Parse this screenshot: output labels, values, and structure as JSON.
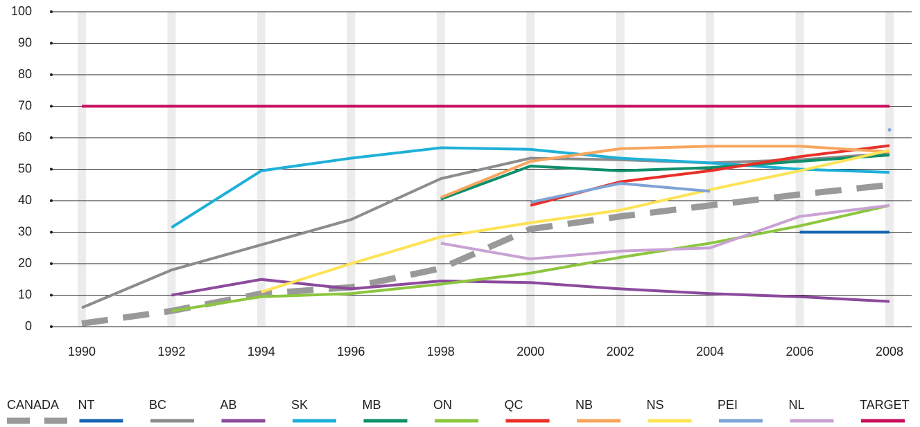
{
  "chart_data": {
    "type": "line",
    "categories": [
      "1990",
      "1992",
      "1994",
      "1996",
      "1998",
      "2000",
      "2002",
      "2004",
      "2006",
      "2008"
    ],
    "ylim": [
      0,
      100
    ],
    "yticks": [
      0,
      10,
      20,
      30,
      40,
      50,
      60,
      70,
      80,
      90,
      100
    ],
    "grid": true,
    "legend": "bottom",
    "series": [
      {
        "name": "CANADA",
        "color": "#999999",
        "dashed": true,
        "values": [
          1,
          5,
          10.5,
          12.5,
          18.5,
          31,
          35,
          38.5,
          42,
          45
        ]
      },
      {
        "name": "NT",
        "color": "#1565b0",
        "values": [
          null,
          null,
          null,
          null,
          null,
          null,
          null,
          null,
          30,
          30
        ]
      },
      {
        "name": "BC",
        "color": "#8c8c8c",
        "values": [
          6,
          18,
          26,
          34,
          47,
          53.5,
          53,
          52,
          53,
          55
        ]
      },
      {
        "name": "AB",
        "color": "#8b4a9c",
        "values": [
          null,
          10,
          15,
          12,
          14.5,
          14,
          12,
          10.5,
          9.5,
          8
        ]
      },
      {
        "name": "SK",
        "color": "#1eb0d8",
        "values": [
          null,
          31.5,
          49.5,
          53.5,
          56.8,
          56.3,
          53.5,
          52,
          50,
          49
        ]
      },
      {
        "name": "MB",
        "color": "#0f8f6a",
        "values": [
          null,
          null,
          null,
          null,
          40.5,
          51,
          49.5,
          50.5,
          52.5,
          54.5
        ]
      },
      {
        "name": "ON",
        "color": "#8cc63f",
        "values": [
          null,
          5,
          9.5,
          10.5,
          13.5,
          17,
          22,
          26.5,
          32,
          38.5
        ]
      },
      {
        "name": "QC",
        "color": "#e8302a",
        "values": [
          null,
          null,
          null,
          null,
          null,
          38.5,
          46,
          49.5,
          54,
          57.5
        ]
      },
      {
        "name": "NB",
        "color": "#f7a55e",
        "values": [
          null,
          null,
          null,
          null,
          41,
          52.5,
          56.5,
          57.3,
          57.3,
          55.5
        ]
      },
      {
        "name": "NS",
        "color": "#fde356",
        "values": [
          null,
          null,
          11,
          20,
          28.5,
          33,
          37,
          43.5,
          49.5,
          56
        ]
      },
      {
        "name": "PEI",
        "color": "#7ea3d6",
        "values": [
          null,
          null,
          null,
          null,
          null,
          39.5,
          45.5,
          43,
          null,
          62.5
        ]
      },
      {
        "name": "NL",
        "color": "#c9a2d4",
        "values": [
          null,
          null,
          null,
          null,
          26.5,
          21.5,
          24,
          25,
          35,
          38.5
        ]
      },
      {
        "name": "TARGET",
        "color": "#c8105f",
        "values": [
          70,
          70,
          70,
          70,
          70,
          70,
          70,
          70,
          70,
          70
        ]
      }
    ]
  }
}
